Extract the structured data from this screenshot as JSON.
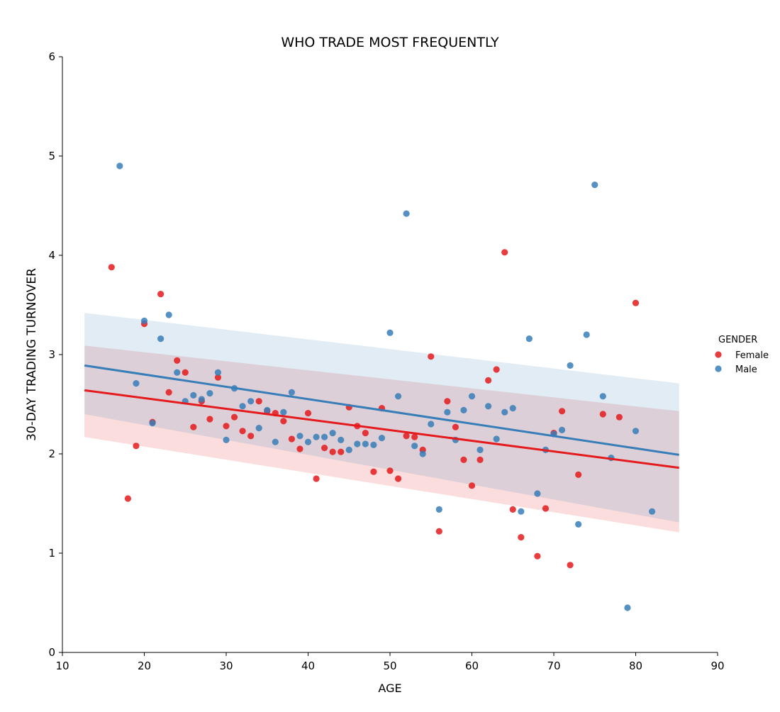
{
  "chart_data": {
    "type": "scatter",
    "title": "WHO TRADE MOST FREQUENTLY",
    "xlabel": "AGE",
    "ylabel": "30-DAY TRADING TURNOVER",
    "xlim": [
      10,
      90
    ],
    "ylim": [
      0,
      6
    ],
    "x_ticks": [
      "10",
      "20",
      "30",
      "40",
      "50",
      "60",
      "70",
      "80",
      "90"
    ],
    "y_ticks": [
      "0",
      "1",
      "2",
      "3",
      "4",
      "5",
      "6"
    ],
    "grid": false,
    "legend": {
      "title": "GENDER",
      "placement": "right"
    },
    "series": [
      {
        "name": "Female",
        "color": "#e41a1c",
        "points": [
          [
            16,
            3.88
          ],
          [
            18,
            1.55
          ],
          [
            19,
            2.08
          ],
          [
            20,
            3.31
          ],
          [
            21,
            2.32
          ],
          [
            22,
            3.61
          ],
          [
            23,
            2.62
          ],
          [
            24,
            2.94
          ],
          [
            25,
            2.82
          ],
          [
            26,
            2.27
          ],
          [
            27,
            2.53
          ],
          [
            28,
            2.35
          ],
          [
            29,
            2.77
          ],
          [
            30,
            2.28
          ],
          [
            31,
            2.37
          ],
          [
            32,
            2.23
          ],
          [
            33,
            2.18
          ],
          [
            34,
            2.53
          ],
          [
            35,
            2.43
          ],
          [
            36,
            2.41
          ],
          [
            37,
            2.33
          ],
          [
            38,
            2.15
          ],
          [
            39,
            2.05
          ],
          [
            40,
            2.41
          ],
          [
            41,
            1.75
          ],
          [
            42,
            2.06
          ],
          [
            43,
            2.02
          ],
          [
            44,
            2.02
          ],
          [
            45,
            2.47
          ],
          [
            46,
            2.28
          ],
          [
            47,
            2.21
          ],
          [
            48,
            1.82
          ],
          [
            49,
            2.46
          ],
          [
            50,
            1.83
          ],
          [
            51,
            1.75
          ],
          [
            52,
            2.18
          ],
          [
            53,
            2.17
          ],
          [
            54,
            2.04
          ],
          [
            55,
            2.98
          ],
          [
            56,
            1.22
          ],
          [
            57,
            2.53
          ],
          [
            58,
            2.27
          ],
          [
            59,
            1.94
          ],
          [
            60,
            1.68
          ],
          [
            61,
            1.94
          ],
          [
            62,
            2.74
          ],
          [
            63,
            2.85
          ],
          [
            64,
            4.03
          ],
          [
            65,
            1.44
          ],
          [
            66,
            1.16
          ],
          [
            68,
            0.97
          ],
          [
            69,
            1.45
          ],
          [
            70,
            2.21
          ],
          [
            71,
            2.43
          ],
          [
            72,
            0.88
          ],
          [
            73,
            1.79
          ],
          [
            76,
            2.4
          ],
          [
            78,
            2.37
          ],
          [
            80,
            3.52
          ]
        ],
        "regression": {
          "start": [
            12.7,
            2.64
          ],
          "end": [
            85.3,
            1.86
          ],
          "ci_upper_start": 3.09,
          "ci_lower_start": 2.17,
          "ci_upper_end": 2.43,
          "ci_lower_end": 1.21
        }
      },
      {
        "name": "Male",
        "color": "#377eb8",
        "points": [
          [
            17,
            4.9
          ],
          [
            19,
            2.71
          ],
          [
            20,
            3.34
          ],
          [
            21,
            2.31
          ],
          [
            22,
            3.16
          ],
          [
            23,
            3.4
          ],
          [
            24,
            2.82
          ],
          [
            25,
            2.53
          ],
          [
            26,
            2.59
          ],
          [
            27,
            2.55
          ],
          [
            28,
            2.61
          ],
          [
            29,
            2.82
          ],
          [
            30,
            2.14
          ],
          [
            31,
            2.66
          ],
          [
            32,
            2.48
          ],
          [
            33,
            2.53
          ],
          [
            34,
            2.26
          ],
          [
            35,
            2.44
          ],
          [
            36,
            2.12
          ],
          [
            37,
            2.42
          ],
          [
            38,
            2.62
          ],
          [
            39,
            2.18
          ],
          [
            40,
            2.12
          ],
          [
            41,
            2.17
          ],
          [
            42,
            2.17
          ],
          [
            43,
            2.21
          ],
          [
            44,
            2.14
          ],
          [
            45,
            2.04
          ],
          [
            46,
            2.1
          ],
          [
            47,
            2.1
          ],
          [
            48,
            2.09
          ],
          [
            49,
            2.16
          ],
          [
            50,
            3.22
          ],
          [
            51,
            2.58
          ],
          [
            52,
            4.42
          ],
          [
            53,
            2.08
          ],
          [
            54,
            2.0
          ],
          [
            55,
            2.3
          ],
          [
            56,
            1.44
          ],
          [
            57,
            2.42
          ],
          [
            58,
            2.14
          ],
          [
            59,
            2.44
          ],
          [
            60,
            2.58
          ],
          [
            61,
            2.04
          ],
          [
            62,
            2.48
          ],
          [
            63,
            2.15
          ],
          [
            64,
            2.42
          ],
          [
            65,
            2.46
          ],
          [
            66,
            1.42
          ],
          [
            67,
            3.16
          ],
          [
            68,
            1.6
          ],
          [
            69,
            2.04
          ],
          [
            70,
            2.2
          ],
          [
            71,
            2.24
          ],
          [
            72,
            2.89
          ],
          [
            73,
            1.29
          ],
          [
            74,
            3.2
          ],
          [
            75,
            4.71
          ],
          [
            76,
            2.58
          ],
          [
            77,
            1.96
          ],
          [
            79,
            0.45
          ],
          [
            80,
            2.23
          ],
          [
            82,
            1.42
          ]
        ],
        "regression": {
          "start": [
            12.7,
            2.89
          ],
          "end": [
            85.3,
            1.99
          ],
          "ci_upper_start": 3.42,
          "ci_lower_start": 2.4,
          "ci_upper_end": 2.71,
          "ci_lower_end": 1.31
        }
      }
    ]
  }
}
